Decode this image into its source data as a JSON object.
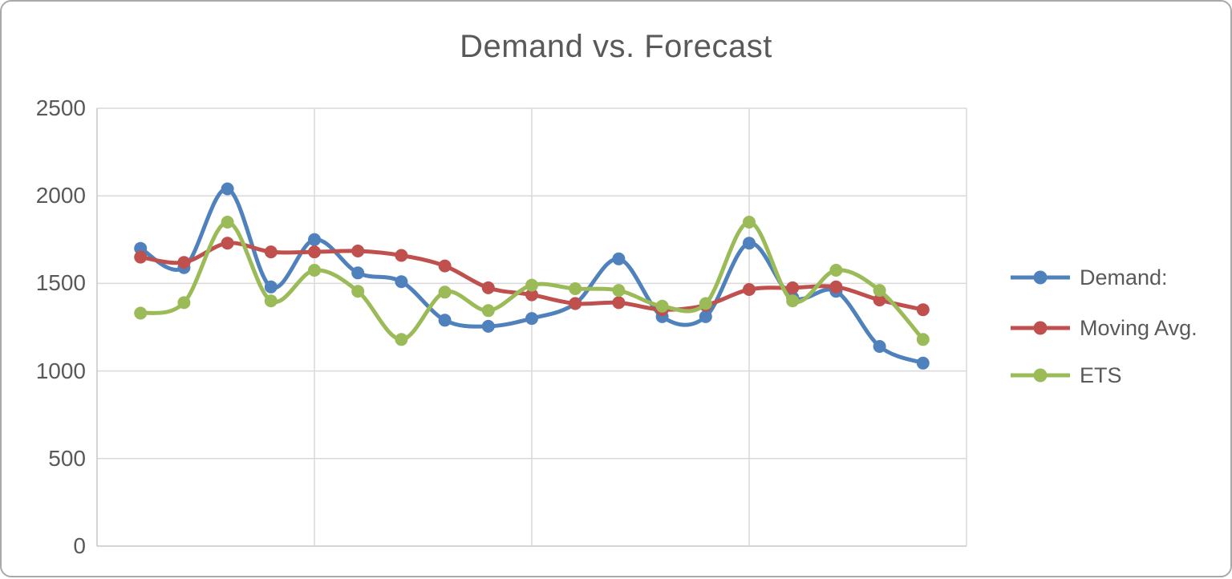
{
  "chart_data": {
    "type": "line",
    "title": "Demand vs. Forecast",
    "xlabel": "",
    "ylabel": "",
    "ylim": [
      0,
      2500
    ],
    "y_ticks": [
      0,
      500,
      1000,
      1500,
      2000,
      2500
    ],
    "x_tick_labels": [],
    "grid": true,
    "smoothed_lines": true,
    "marker": "circle",
    "legend_position": "right",
    "series": [
      {
        "name": "Demand:",
        "color": "#4F81BD",
        "values": [
          1700,
          1590,
          2040,
          1480,
          1750,
          1560,
          1510,
          1290,
          1255,
          1300,
          1385,
          1640,
          1310,
          1310,
          1730,
          1420,
          1455,
          1140,
          1045
        ]
      },
      {
        "name": "Moving Avg.",
        "color": "#C0504D",
        "values": [
          1650,
          1620,
          1730,
          1680,
          1680,
          1685,
          1660,
          1600,
          1475,
          1435,
          1385,
          1390,
          1350,
          1375,
          1465,
          1475,
          1480,
          1405,
          1350
        ]
      },
      {
        "name": "ETS",
        "color": "#9BBB59",
        "values": [
          1330,
          1390,
          1850,
          1400,
          1575,
          1455,
          1180,
          1450,
          1345,
          1490,
          1470,
          1460,
          1370,
          1385,
          1850,
          1400,
          1575,
          1460,
          1180
        ]
      }
    ],
    "colors": {
      "text": "#595959",
      "gridline": "#D9D9D9",
      "axis_line": "#C6C6C6",
      "background": "#FFFFFF",
      "frame_border": "#A9A9A9"
    }
  }
}
